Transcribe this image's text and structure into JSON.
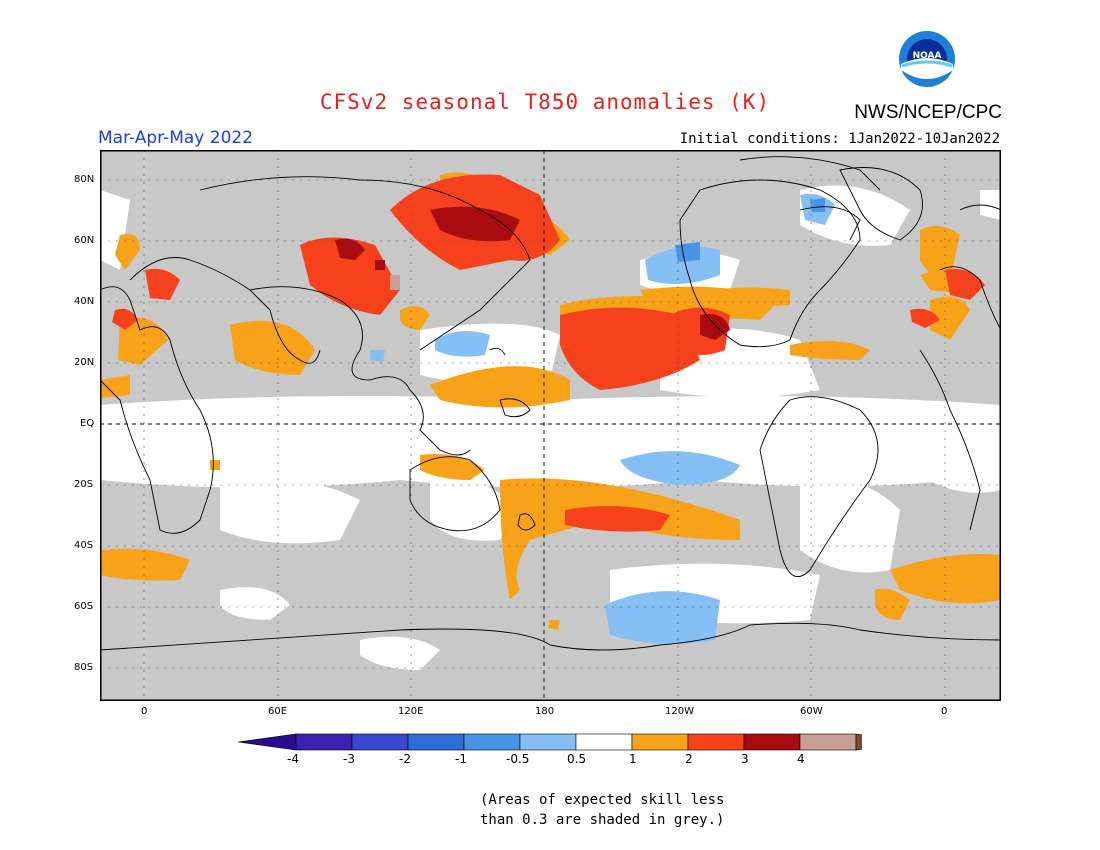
{
  "header": {
    "title": "CFSv2 seasonal T850 anomalies (K)",
    "season": "Mar-Apr-May 2022",
    "agency": "NWS/NCEP/CPC",
    "initial_conditions": "Initial conditions: 1Jan2022-10Jan2022",
    "logo_text": "NOAA"
  },
  "map": {
    "lat_labels": [
      "80N",
      "60N",
      "40N",
      "20N",
      "EQ",
      "20S",
      "40S",
      "60S",
      "80S"
    ],
    "lon_labels": [
      "0",
      "60E",
      "120E",
      "180",
      "120W",
      "60W",
      "0"
    ]
  },
  "colorbar": {
    "labels": [
      "-4",
      "-3",
      "-2",
      "-1",
      "-0.5",
      "0.5",
      "1",
      "2",
      "3",
      "4"
    ],
    "colors": [
      "#3b1fb0",
      "#3a48cf",
      "#2e6dd6",
      "#4a94e8",
      "#86bff4",
      "#ffffff",
      "#f8a21a",
      "#f5421c",
      "#a80c10",
      "#c79f94"
    ],
    "end_colors": {
      "low": "#2c0c8a",
      "high": "#7a4a36"
    },
    "grey_mask": "#c8c8c8"
  },
  "footnote": {
    "line1": "(Areas of expected skill less",
    "line2": "than 0.3 are shaded in grey.)"
  }
}
